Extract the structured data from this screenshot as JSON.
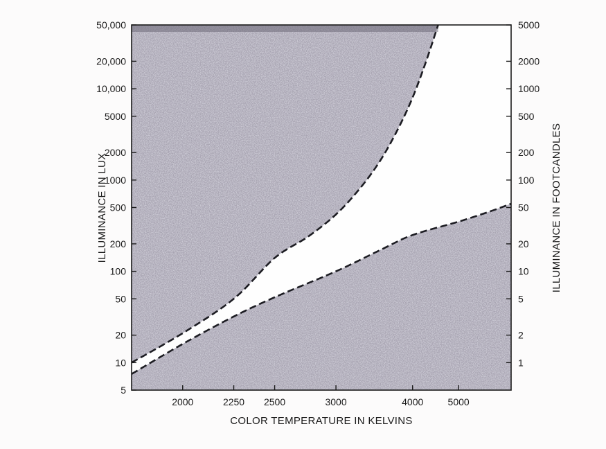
{
  "chart_data": {
    "type": "area",
    "xlabel": "COLOR TEMPERATURE IN KELVINS",
    "ylabel_left": "ILLUMINANCE IN LUX",
    "ylabel_right": "ILLUMINANCE IN FOOTCANDLES",
    "x_scale": "reciprocal",
    "y_scale": "log",
    "xlim": [
      1800,
      7000
    ],
    "ylim_left": [
      5,
      50000
    ],
    "ylim_right": [
      0.5,
      5000
    ],
    "x_ticks": [
      {
        "value": 2000,
        "label": "2000"
      },
      {
        "value": 2250,
        "label": "2250"
      },
      {
        "value": 2500,
        "label": "2500"
      },
      {
        "value": 3000,
        "label": "3000"
      },
      {
        "value": 4000,
        "label": "4000"
      },
      {
        "value": 5000,
        "label": "5000"
      }
    ],
    "y_ticks_left": [
      {
        "value": 5,
        "label": "5"
      },
      {
        "value": 10,
        "label": "10"
      },
      {
        "value": 20,
        "label": "20"
      },
      {
        "value": 50,
        "label": "50"
      },
      {
        "value": 100,
        "label": "100"
      },
      {
        "value": 200,
        "label": "200"
      },
      {
        "value": 500,
        "label": "500"
      },
      {
        "value": 1000,
        "label": "1000"
      },
      {
        "value": 2000,
        "label": "2000"
      },
      {
        "value": 5000,
        "label": "5000"
      },
      {
        "value": 10000,
        "label": "10,000"
      },
      {
        "value": 20000,
        "label": "20,000"
      },
      {
        "value": 50000,
        "label": "50,000"
      }
    ],
    "y_ticks_right": [
      {
        "value": 1,
        "label": "1"
      },
      {
        "value": 2,
        "label": "2"
      },
      {
        "value": 5,
        "label": "5"
      },
      {
        "value": 10,
        "label": "10"
      },
      {
        "value": 20,
        "label": "20"
      },
      {
        "value": 50,
        "label": "50"
      },
      {
        "value": 100,
        "label": "100"
      },
      {
        "value": 200,
        "label": "200"
      },
      {
        "value": 500,
        "label": "500"
      },
      {
        "value": 1000,
        "label": "1000"
      },
      {
        "value": 2000,
        "label": "2000"
      },
      {
        "value": 5000,
        "label": "5000"
      }
    ],
    "series": [
      {
        "style": "dashed",
        "fill": "above",
        "x": [
          1800,
          2000,
          2250,
          2500,
          2750,
          3000,
          3250,
          3500,
          3750,
          4000,
          4250,
          4500
        ],
        "y": [
          10,
          21,
          50,
          140,
          240,
          420,
          800,
          1600,
          3500,
          8000,
          20000,
          50000
        ]
      },
      {
        "style": "dashed",
        "fill": "below",
        "x": [
          1800,
          2000,
          2250,
          2500,
          3000,
          3500,
          4000,
          5000,
          6000,
          7000
        ],
        "y": [
          7.5,
          16,
          32,
          52,
          100,
          170,
          250,
          350,
          450,
          550
        ]
      }
    ],
    "grid": false,
    "legend": "none"
  }
}
